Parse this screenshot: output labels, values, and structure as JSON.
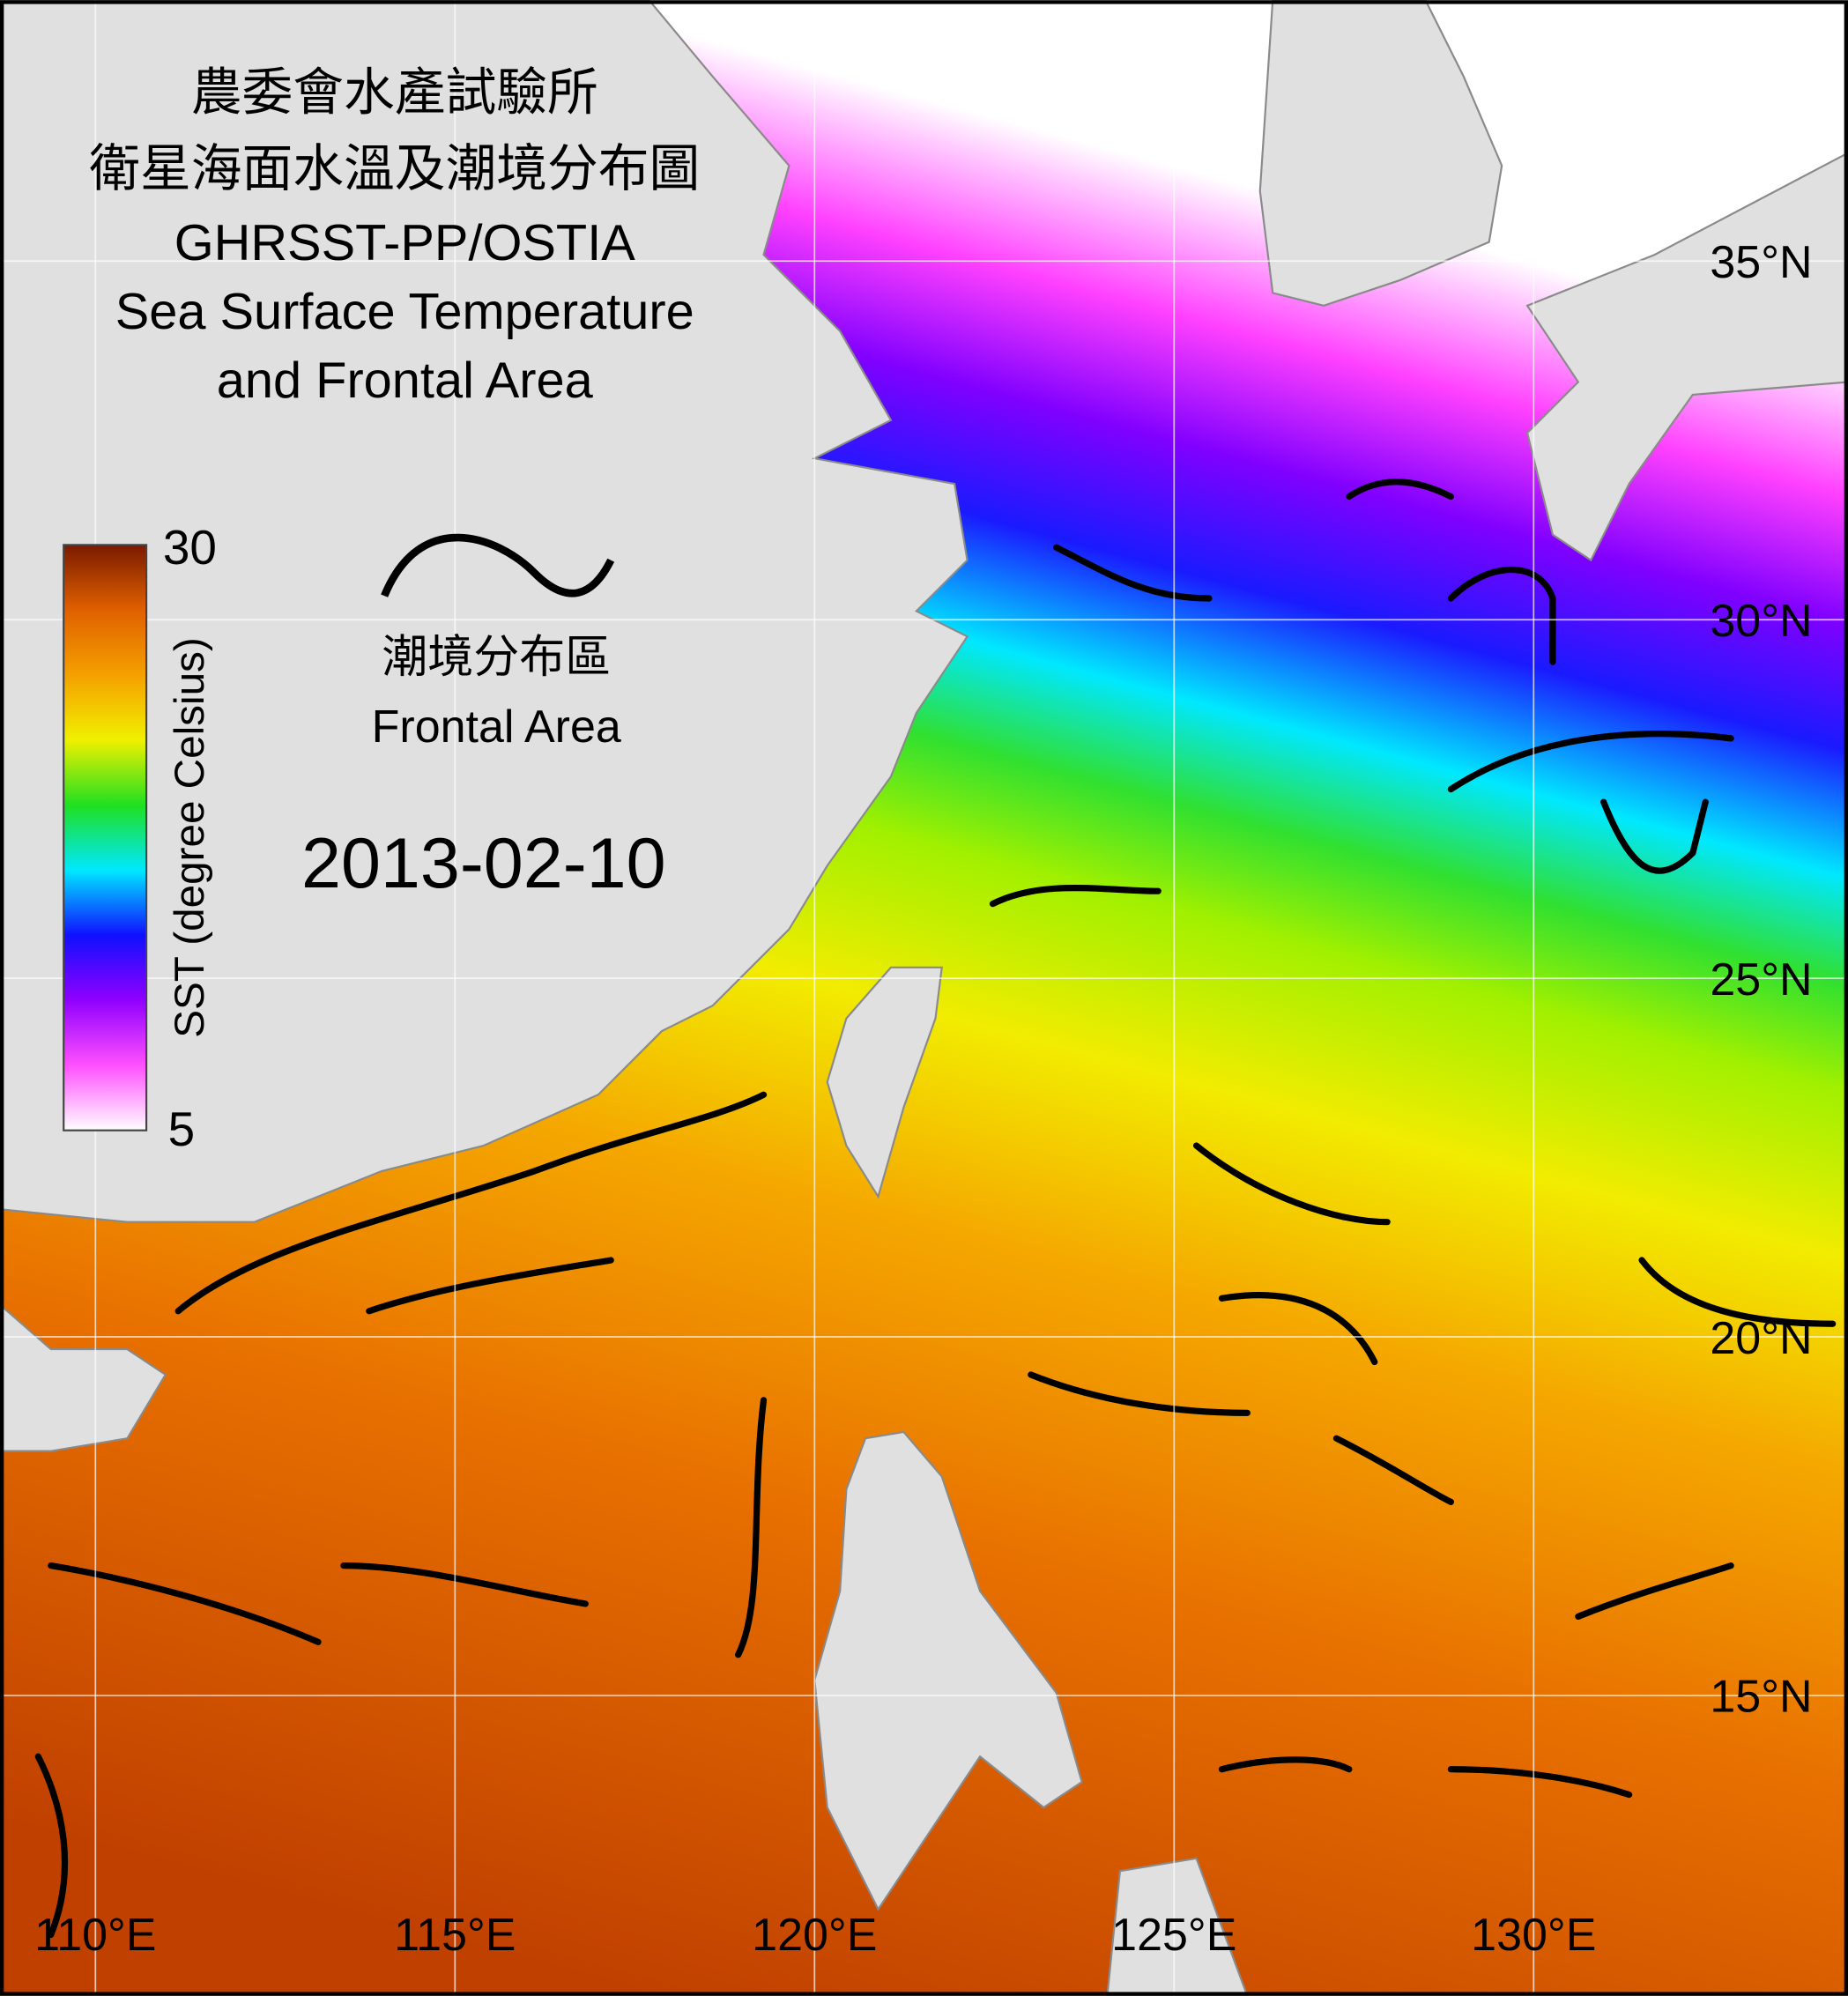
{
  "title": {
    "lines": [
      "農委會水產試驗所",
      "衛星海面水溫及潮境分布圖",
      "GHRSST-PP/OSTIA",
      "Sea Surface Temperature",
      "and Frontal Area"
    ]
  },
  "colorbar": {
    "label": "SST (degree Celsius)",
    "min": 5,
    "max": 30,
    "colors": [
      "#ffffff",
      "#ff50ff",
      "#9000ff",
      "#1010ff",
      "#00e8ff",
      "#20e020",
      "#f0f000",
      "#f5a000",
      "#e06000",
      "#7a1a00"
    ]
  },
  "legend": {
    "lines": [
      "潮境分布區",
      "Frontal Area"
    ]
  },
  "date": "2013-02-10",
  "map": {
    "lon_ticks": [
      {
        "value": 110,
        "label": "110°E"
      },
      {
        "value": 115,
        "label": "115°E"
      },
      {
        "value": 120,
        "label": "120°E"
      },
      {
        "value": 125,
        "label": "125°E"
      },
      {
        "value": 130,
        "label": "130°E"
      }
    ],
    "lat_ticks": [
      {
        "value": 35,
        "label": "35°N"
      },
      {
        "value": 30,
        "label": "30°N"
      },
      {
        "value": 25,
        "label": "25°N"
      },
      {
        "value": 20,
        "label": "20°N"
      },
      {
        "value": 15,
        "label": "15°N"
      }
    ]
  }
}
